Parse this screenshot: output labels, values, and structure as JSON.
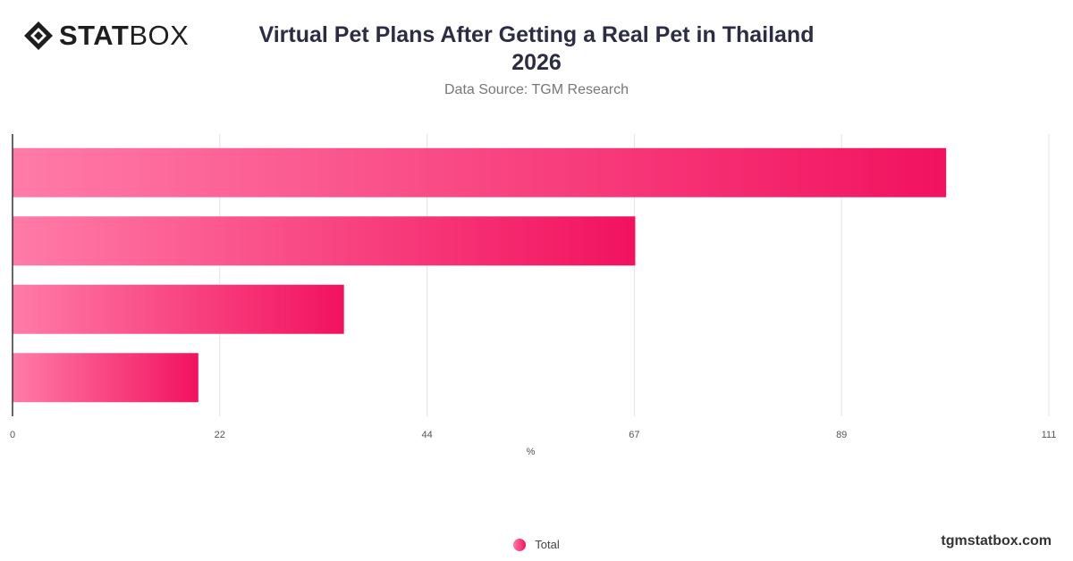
{
  "brand": {
    "stat": "STAT",
    "box": "BOX",
    "icon": "statbox-diamond-icon"
  },
  "header": {
    "title_line1": "Virtual Pet Plans After Getting a Real Pet in Thailand",
    "title_line2": "2026",
    "subtitle": "Data Source: TGM Research"
  },
  "colors": {
    "bar_start": "#ff7ba7",
    "bar_end": "#f2125f",
    "grid": "#e3e3e3",
    "axis": "#333333"
  },
  "chart_data": {
    "type": "bar",
    "orientation": "horizontal",
    "categories": [
      "",
      "",
      "",
      ""
    ],
    "series": [
      {
        "name": "Total",
        "values": [
          100,
          66.7,
          35.5,
          19.9
        ]
      }
    ],
    "xlabel": "%",
    "xlim": [
      0,
      111
    ],
    "ticks": [
      {
        "value": 0,
        "label": "0"
      },
      {
        "value": 22.2,
        "label": "22"
      },
      {
        "value": 44.4,
        "label": "44"
      },
      {
        "value": 66.6,
        "label": "67"
      },
      {
        "value": 88.8,
        "label": "89"
      },
      {
        "value": 111,
        "label": "111"
      }
    ],
    "grid": true,
    "legend": "bottom-center"
  },
  "footer": {
    "legend_label": "Total",
    "website": "tgmstatbox.com"
  }
}
